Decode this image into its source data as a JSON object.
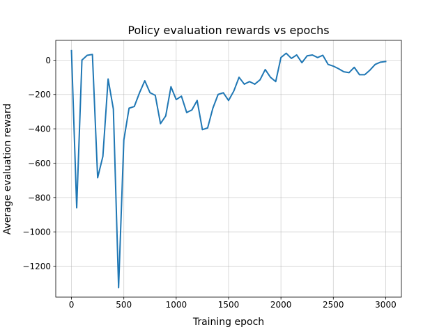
{
  "chart_data": {
    "type": "line",
    "title": "Policy evaluation rewards vs epochs",
    "xlabel": "Training epoch",
    "ylabel": "Average evaluation reward",
    "xlim": [
      -150,
      3150
    ],
    "ylim": [
      -1380,
      115
    ],
    "xticks": [
      0,
      500,
      1000,
      1500,
      2000,
      2500,
      3000
    ],
    "xtick_labels": [
      "0",
      "500",
      "1000",
      "1500",
      "2000",
      "2500",
      "3000"
    ],
    "yticks": [
      0,
      -200,
      -400,
      -600,
      -800,
      -1000,
      -1200
    ],
    "ytick_labels": [
      "0",
      "−200",
      "−400",
      "−600",
      "−800",
      "−1000",
      "−1200"
    ],
    "grid": true,
    "legend": false,
    "line_color": "#1f77b4",
    "x": [
      0,
      50,
      100,
      150,
      200,
      250,
      300,
      350,
      400,
      450,
      500,
      550,
      600,
      650,
      700,
      750,
      800,
      850,
      900,
      950,
      1000,
      1050,
      1100,
      1150,
      1200,
      1250,
      1300,
      1350,
      1400,
      1450,
      1500,
      1550,
      1600,
      1650,
      1700,
      1750,
      1800,
      1850,
      1900,
      1950,
      2000,
      2050,
      2100,
      2150,
      2200,
      2250,
      2300,
      2350,
      2400,
      2450,
      2500,
      2550,
      2600,
      2650,
      2700,
      2750,
      2800,
      2850,
      2900,
      2950,
      3000
    ],
    "y": [
      55,
      -860,
      0,
      28,
      33,
      -685,
      -560,
      -110,
      -285,
      -1325,
      -465,
      -280,
      -270,
      -190,
      -120,
      -190,
      -205,
      -370,
      -325,
      -155,
      -230,
      -210,
      -305,
      -290,
      -235,
      -405,
      -395,
      -280,
      -200,
      -190,
      -235,
      -180,
      -100,
      -140,
      -125,
      -140,
      -115,
      -55,
      -100,
      -125,
      15,
      40,
      10,
      30,
      -15,
      25,
      30,
      15,
      28,
      -25,
      -35,
      -50,
      -68,
      -73,
      -42,
      -85,
      -85,
      -58,
      -25,
      -12,
      -8
    ]
  }
}
